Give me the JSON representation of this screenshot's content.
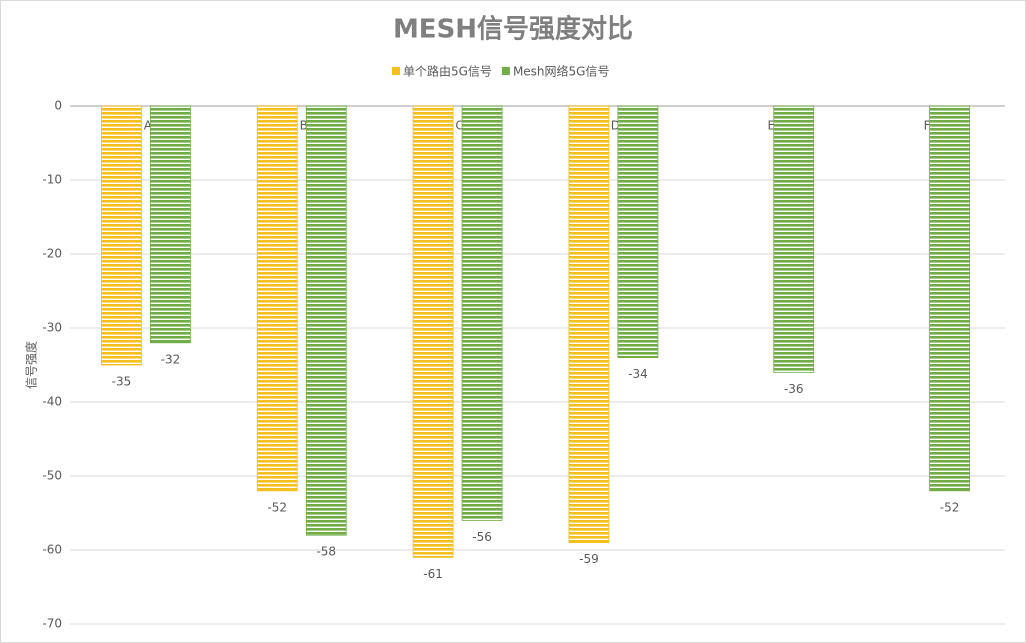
{
  "chart_data": {
    "type": "bar",
    "title": "MESH信号强度对比",
    "y_label": "信号强度",
    "categories": [
      "A",
      "B",
      "C",
      "D",
      "E",
      "F"
    ],
    "series": [
      {
        "name": "单个路由5G信号",
        "color": "#f5bf1f",
        "values": [
          -35,
          -52,
          -61,
          -59,
          null,
          null
        ]
      },
      {
        "name": "Mesh网络5G信号",
        "color": "#70ad47",
        "values": [
          -32,
          -58,
          -56,
          -34,
          -36,
          -52
        ]
      }
    ],
    "ylim": [
      -70,
      0
    ],
    "yticks": [
      0,
      -10,
      -20,
      -30,
      -40,
      -50,
      -60,
      -70
    ],
    "grid": true,
    "legend": "top"
  }
}
